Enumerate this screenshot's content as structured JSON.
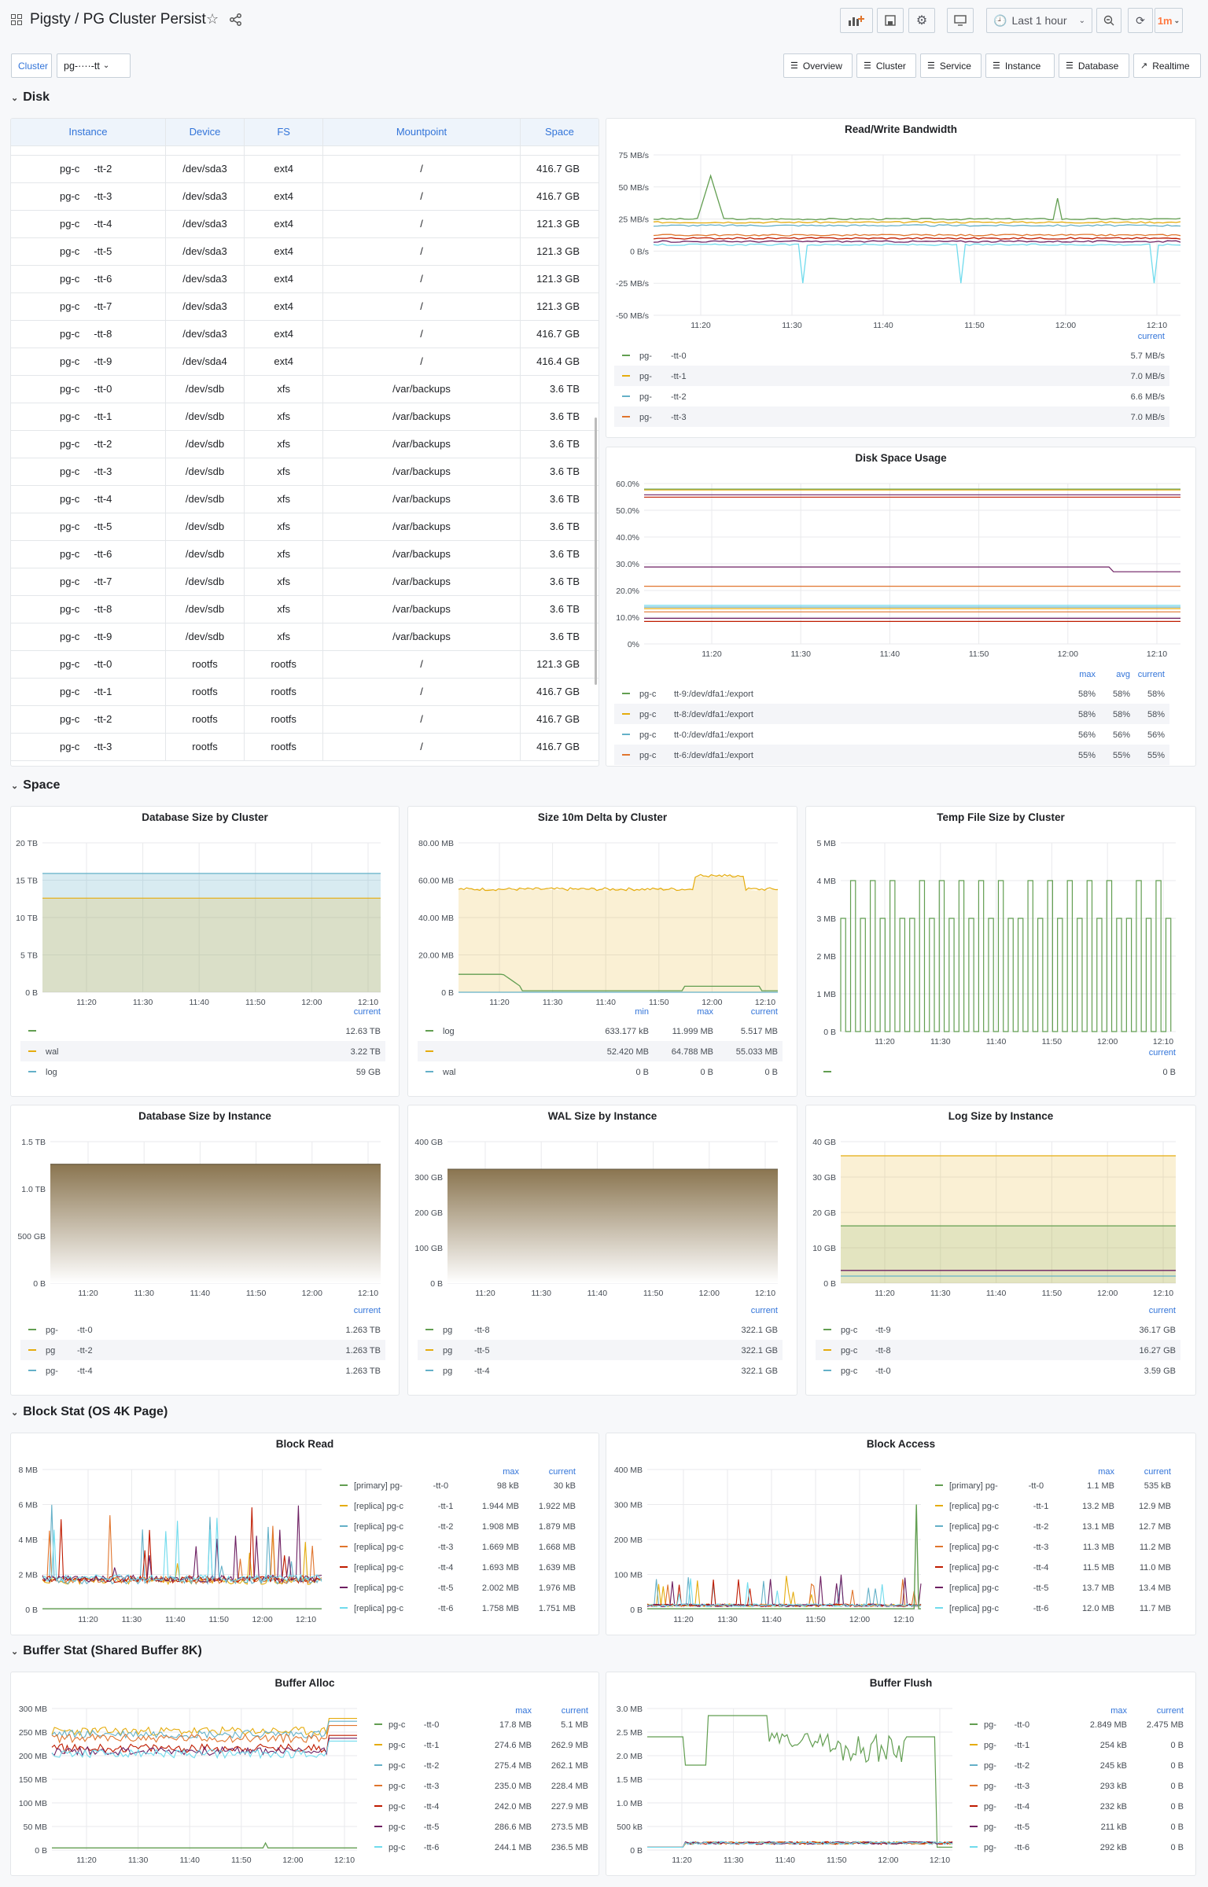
{
  "app": {
    "title": "Pigsty / PG Cluster Persist",
    "time_range": "Last 1 hour",
    "refresh": "1m"
  },
  "variables": {
    "cluster_label": "Cluster",
    "cluster_value": "pg-····-tt"
  },
  "nav_links": [
    "Overview",
    "Cluster",
    "Service",
    "Instance",
    "Database",
    "Realtime"
  ],
  "rows": {
    "disk": "Disk",
    "space": "Space",
    "block": "Block Stat (OS 4K Page)",
    "buffer": "Buffer Stat (Shared Buffer 8K)"
  },
  "disk_table": {
    "columns": [
      "Instance",
      "Device",
      "FS",
      "Mountpoint",
      "Space"
    ],
    "rows": [
      [
        "pg-c",
        "-tt-2",
        "/dev/sda3",
        "ext4",
        "/",
        "416.7 GB"
      ],
      [
        "pg-c",
        "-tt-3",
        "/dev/sda3",
        "ext4",
        "/",
        "416.7 GB"
      ],
      [
        "pg-c",
        "-tt-4",
        "/dev/sda3",
        "ext4",
        "/",
        "121.3 GB"
      ],
      [
        "pg-c",
        "-tt-5",
        "/dev/sda3",
        "ext4",
        "/",
        "121.3 GB"
      ],
      [
        "pg-c",
        "-tt-6",
        "/dev/sda3",
        "ext4",
        "/",
        "121.3 GB"
      ],
      [
        "pg-c",
        "-tt-7",
        "/dev/sda3",
        "ext4",
        "/",
        "121.3 GB"
      ],
      [
        "pg-c",
        "-tt-8",
        "/dev/sda3",
        "ext4",
        "/",
        "416.7 GB"
      ],
      [
        "pg-c",
        "-tt-9",
        "/dev/sda4",
        "ext4",
        "/",
        "416.4 GB"
      ],
      [
        "pg-c",
        "-tt-0",
        "/dev/sdb",
        "xfs",
        "/var/backups",
        "3.6 TB"
      ],
      [
        "pg-c",
        "-tt-1",
        "/dev/sdb",
        "xfs",
        "/var/backups",
        "3.6 TB"
      ],
      [
        "pg-c",
        "-tt-2",
        "/dev/sdb",
        "xfs",
        "/var/backups",
        "3.6 TB"
      ],
      [
        "pg-c",
        "-tt-3",
        "/dev/sdb",
        "xfs",
        "/var/backups",
        "3.6 TB"
      ],
      [
        "pg-c",
        "-tt-4",
        "/dev/sdb",
        "xfs",
        "/var/backups",
        "3.6 TB"
      ],
      [
        "pg-c",
        "-tt-5",
        "/dev/sdb",
        "xfs",
        "/var/backups",
        "3.6 TB"
      ],
      [
        "pg-c",
        "-tt-6",
        "/dev/sdb",
        "xfs",
        "/var/backups",
        "3.6 TB"
      ],
      [
        "pg-c",
        "-tt-7",
        "/dev/sdb",
        "xfs",
        "/var/backups",
        "3.6 TB"
      ],
      [
        "pg-c",
        "-tt-8",
        "/dev/sdb",
        "xfs",
        "/var/backups",
        "3.6 TB"
      ],
      [
        "pg-c",
        "-tt-9",
        "/dev/sdb",
        "xfs",
        "/var/backups",
        "3.6 TB"
      ],
      [
        "pg-c",
        "-tt-0",
        "rootfs",
        "rootfs",
        "/",
        "121.3 GB"
      ],
      [
        "pg-c",
        "-tt-1",
        "rootfs",
        "rootfs",
        "/",
        "416.7 GB"
      ],
      [
        "pg-c",
        "-tt-2",
        "rootfs",
        "rootfs",
        "/",
        "416.7 GB"
      ],
      [
        "pg-c",
        "-tt-3",
        "rootfs",
        "rootfs",
        "/",
        "416.7 GB"
      ]
    ]
  },
  "x_ticks": [
    "11:20",
    "11:30",
    "11:40",
    "11:50",
    "12:00",
    "12:10"
  ],
  "panels": {
    "rw": {
      "title": "Read/Write Bandwidth",
      "yticks": [
        "75 MB/s",
        "50 MB/s",
        "25 MB/s",
        "0 B/s",
        "-25 MB/s",
        "-50 MB/s"
      ],
      "lhead": [
        "current"
      ],
      "legend": [
        [
          "pg-",
          "-tt-0",
          "5.7 MB/s"
        ],
        [
          "pg-",
          "-tt-1",
          "7.0 MB/s"
        ],
        [
          "pg-",
          "-tt-2",
          "6.6 MB/s"
        ],
        [
          "pg-",
          "-tt-3",
          "7.0 MB/s"
        ]
      ]
    },
    "dsu": {
      "title": "Disk Space Usage",
      "yticks": [
        "60.0%",
        "50.0%",
        "40.0%",
        "30.0%",
        "20.0%",
        "10.0%",
        "0%"
      ],
      "lhead": [
        "max",
        "avg",
        "current"
      ],
      "legend": [
        [
          "pg-c",
          "tt-9:/dev/dfa1:/export",
          "58%",
          "58%",
          "58%"
        ],
        [
          "pg-c",
          "tt-8:/dev/dfa1:/export",
          "58%",
          "58%",
          "58%"
        ],
        [
          "pg-c",
          "tt-0:/dev/dfa1:/export",
          "56%",
          "56%",
          "56%"
        ],
        [
          "pg-c",
          "tt-6:/dev/dfa1:/export",
          "55%",
          "55%",
          "55%"
        ]
      ]
    },
    "dbc": {
      "title": "Database Size by Cluster",
      "yticks": [
        "20 TB",
        "15 TB",
        "10 TB",
        "5 TB",
        "0 B"
      ],
      "lhead": [
        "current"
      ],
      "legend": [
        [
          "",
          "12.63 TB"
        ],
        [
          "wal",
          "3.22 TB"
        ],
        [
          "log",
          "59 GB"
        ]
      ]
    },
    "s10": {
      "title": "Size 10m Delta by Cluster",
      "yticks": [
        "80.00 MB",
        "60.00 MB",
        "40.00 MB",
        "20.00 MB",
        "0 B"
      ],
      "lhead": [
        "min",
        "max",
        "current"
      ],
      "legend": [
        [
          "log",
          "633.177 kB",
          "11.999 MB",
          "5.517 MB"
        ],
        [
          "",
          "52.420 MB",
          "64.788 MB",
          "55.033 MB"
        ],
        [
          "wal",
          "0 B",
          "0 B",
          "0 B"
        ]
      ]
    },
    "tmp": {
      "title": "Temp File Size by Cluster",
      "yticks": [
        "5 MB",
        "4 MB",
        "3 MB",
        "2 MB",
        "1 MB",
        "0 B"
      ],
      "lhead": [
        "current"
      ],
      "legend": [
        [
          "",
          "0 B"
        ]
      ]
    },
    "dbi": {
      "title": "Database Size by Instance",
      "yticks": [
        "1.5 TB",
        "1.0 TB",
        "500 GB",
        "0 B"
      ],
      "lhead": [
        "current"
      ],
      "legend": [
        [
          "pg-",
          "-tt-0",
          "1.263 TB"
        ],
        [
          "pg",
          "-tt-2",
          "1.263 TB"
        ],
        [
          "pg-",
          "-tt-4",
          "1.263 TB"
        ]
      ]
    },
    "wal": {
      "title": "WAL Size by Instance",
      "yticks": [
        "400 GB",
        "300 GB",
        "200 GB",
        "100 GB",
        "0 B"
      ],
      "lhead": [
        "current"
      ],
      "legend": [
        [
          "pg",
          "-tt-8",
          "322.1 GB"
        ],
        [
          "pg",
          "-tt-5",
          "322.1 GB"
        ],
        [
          "pg",
          "-tt-4",
          "322.1 GB"
        ]
      ]
    },
    "log": {
      "title": "Log Size by Instance",
      "yticks": [
        "40 GB",
        "30 GB",
        "20 GB",
        "10 GB",
        "0 B"
      ],
      "lhead": [
        "current"
      ],
      "legend": [
        [
          "pg-c",
          "-tt-9",
          "36.17 GB"
        ],
        [
          "pg-c",
          "-tt-8",
          "16.27 GB"
        ],
        [
          "pg-c",
          "-tt-0",
          "3.59 GB"
        ]
      ]
    },
    "br": {
      "title": "Block Read",
      "yticks": [
        "8 MB",
        "6 MB",
        "4 MB",
        "2 MB",
        "0 B"
      ],
      "lhead": [
        "max",
        "current"
      ],
      "legend": [
        [
          "[primary] pg-",
          "-tt-0",
          "98 kB",
          "30 kB"
        ],
        [
          "[replica] pg-c",
          "-tt-1",
          "1.944 MB",
          "1.922 MB"
        ],
        [
          "[replica] pg-c",
          "-tt-2",
          "1.908 MB",
          "1.879 MB"
        ],
        [
          "[replica] pg-c",
          "-tt-3",
          "1.669 MB",
          "1.668 MB"
        ],
        [
          "[replica] pg-c",
          "-tt-4",
          "1.693 MB",
          "1.639 MB"
        ],
        [
          "[replica] pg-c",
          "-tt-5",
          "2.002 MB",
          "1.976 MB"
        ],
        [
          "[replica] pg-c",
          "-tt-6",
          "1.758 MB",
          "1.751 MB"
        ]
      ]
    },
    "ba": {
      "title": "Block Access",
      "yticks": [
        "400 MB",
        "300 MB",
        "200 MB",
        "100 MB",
        "0 B"
      ],
      "lhead": [
        "max",
        "current"
      ],
      "legend": [
        [
          "[primary] pg-",
          "-tt-0",
          "1.1 MB",
          "535 kB"
        ],
        [
          "[replica] pg-c",
          "-tt-1",
          "13.2 MB",
          "12.9 MB"
        ],
        [
          "[replica] pg-c",
          "-tt-2",
          "13.1 MB",
          "12.7 MB"
        ],
        [
          "[replica] pg-c",
          "-tt-3",
          "11.3 MB",
          "11.2 MB"
        ],
        [
          "[replica] pg-c",
          "-tt-4",
          "11.5 MB",
          "11.0 MB"
        ],
        [
          "[replica] pg-c",
          "-tt-5",
          "13.7 MB",
          "13.4 MB"
        ],
        [
          "[replica] pg-c",
          "-tt-6",
          "12.0 MB",
          "11.7 MB"
        ]
      ]
    },
    "bal": {
      "title": "Buffer Alloc",
      "yticks": [
        "300 MB",
        "250 MB",
        "200 MB",
        "150 MB",
        "100 MB",
        "50 MB",
        "0 B"
      ],
      "lhead": [
        "max",
        "current"
      ],
      "legend": [
        [
          "pg-c",
          "-tt-0",
          "17.8 MB",
          "5.1 MB"
        ],
        [
          "pg-c",
          "-tt-1",
          "274.6 MB",
          "262.9 MB"
        ],
        [
          "pg-c",
          "-tt-2",
          "275.4 MB",
          "262.1 MB"
        ],
        [
          "pg-c",
          "-tt-3",
          "235.0 MB",
          "228.4 MB"
        ],
        [
          "pg-c",
          "-tt-4",
          "242.0 MB",
          "227.9 MB"
        ],
        [
          "pg-c",
          "-tt-5",
          "286.6 MB",
          "273.5 MB"
        ],
        [
          "pg-c",
          "-tt-6",
          "244.1 MB",
          "236.5 MB"
        ]
      ]
    },
    "bfl": {
      "title": "Buffer Flush",
      "yticks": [
        "3.0 MB",
        "2.5 MB",
        "2.0 MB",
        "1.5 MB",
        "1.0 MB",
        "500 kB",
        "0 B"
      ],
      "lhead": [
        "max",
        "current"
      ],
      "legend": [
        [
          "pg-",
          "-tt-0",
          "2.849 MB",
          "2.475 MB"
        ],
        [
          "pg-",
          "-tt-1",
          "254 kB",
          "0 B"
        ],
        [
          "pg-",
          "-tt-2",
          "245 kB",
          "0 B"
        ],
        [
          "pg-",
          "-tt-3",
          "293 kB",
          "0 B"
        ],
        [
          "pg-",
          "-tt-4",
          "232 kB",
          "0 B"
        ],
        [
          "pg-",
          "-tt-5",
          "211 kB",
          "0 B"
        ],
        [
          "pg-",
          "-tt-6",
          "292 kB",
          "0 B"
        ]
      ]
    }
  },
  "colors": {
    "green": "#629e51",
    "yellow": "#e5ac0e",
    "blue": "#64b0c8",
    "orange": "#e0752d",
    "red": "#bf1b00",
    "purple": "#6d1f62",
    "lightblue": "#70dbed",
    "accent": "#3274d9",
    "refresh": "#ff7941"
  }
}
